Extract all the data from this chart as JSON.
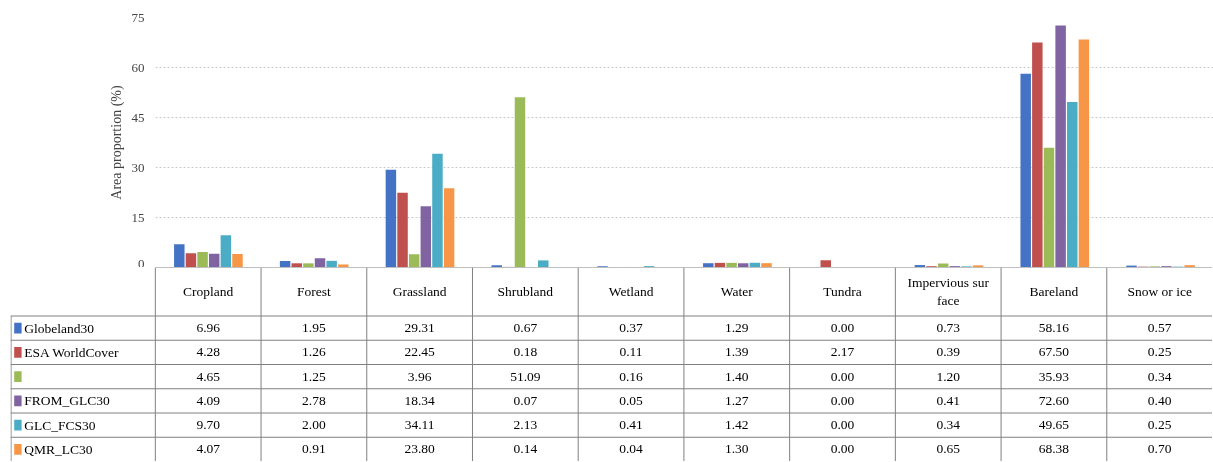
{
  "chart_data": {
    "type": "bar",
    "ylabel": "Area proportion (%)",
    "categories": [
      "Cropland",
      "Forest",
      "Grassland",
      "Shrubland",
      "Wetland",
      "Water",
      "Tundra",
      "Impervious sur face",
      "Bareland",
      "Snow or ice"
    ],
    "ylim": [
      0,
      75
    ],
    "yticks": [
      0,
      15,
      30,
      45,
      60,
      75
    ],
    "grid": "y",
    "legend": "bottom",
    "data_labels": true,
    "series": [
      {
        "name": "Globeland30",
        "color": "#4472c4",
        "values": [
          6.96,
          1.95,
          29.31,
          0.67,
          0.37,
          1.29,
          0.0,
          0.73,
          58.16,
          0.57
        ],
        "value_labels": [
          "6.96",
          "1.95",
          "29.31",
          "0.67",
          "0.37",
          "1.29",
          "0.00",
          "0.73",
          "58.16",
          "0.57"
        ]
      },
      {
        "name": "ESA WorldCover",
        "color": "#c0504d",
        "values": [
          4.28,
          1.26,
          22.45,
          0.18,
          0.11,
          1.39,
          2.17,
          0.39,
          67.5,
          0.25
        ],
        "value_labels": [
          "4.28",
          "1.26",
          "22.45",
          "0.18",
          "0.11",
          "1.39",
          "2.17",
          "0.39",
          "67.50",
          "0.25"
        ]
      },
      {
        "color": "#9bbb59",
        "values": [
          4.65,
          1.25,
          3.96,
          51.09,
          0.16,
          1.4,
          0.0,
          1.2,
          35.93,
          0.34
        ],
        "value_labels": [
          "4.65",
          "1.25",
          "3.96",
          "51.09",
          "0.16",
          "1.40",
          "0.00",
          "1.20",
          "35.93",
          "0.34"
        ]
      },
      {
        "name": "FROM_GLC30",
        "color": "#8064a2",
        "values": [
          4.09,
          2.78,
          18.34,
          0.07,
          0.05,
          1.27,
          0.0,
          0.41,
          72.6,
          0.4
        ],
        "value_labels": [
          "4.09",
          "2.78",
          "18.34",
          "0.07",
          "0.05",
          "1.27",
          "0.00",
          "0.41",
          "72.60",
          "0.40"
        ]
      },
      {
        "name": "GLC_FCS30",
        "color": "#4bacc6",
        "values": [
          9.7,
          2.0,
          34.11,
          2.13,
          0.41,
          1.42,
          0.0,
          0.34,
          49.65,
          0.25
        ],
        "value_labels": [
          "9.70",
          "2.00",
          "34.11",
          "2.13",
          "0.41",
          "1.42",
          "0.00",
          "0.34",
          "49.65",
          "0.25"
        ]
      },
      {
        "name": "QMR_LC30",
        "color": "#f79646",
        "values": [
          4.07,
          0.91,
          23.8,
          0.14,
          0.04,
          1.3,
          0.0,
          0.65,
          68.38,
          0.7
        ],
        "value_labels": [
          "4.07",
          "0.91",
          "23.80",
          "0.14",
          "0.04",
          "1.30",
          "0.00",
          "0.65",
          "68.38",
          "0.70"
        ]
      }
    ]
  }
}
